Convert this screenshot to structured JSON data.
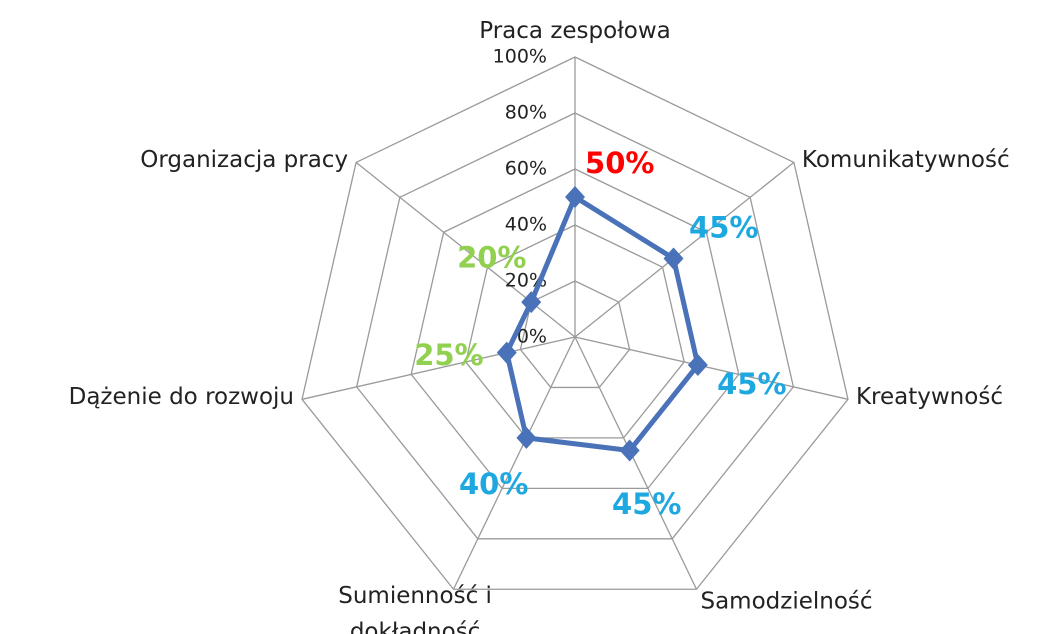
{
  "chart_data": {
    "type": "radar",
    "categories": [
      "Praca zespołowa",
      "Komunikatywność",
      "Kreatywność",
      "Samodzielność",
      "Sumienność i\ndokładność",
      "Dążenie do rozwoju",
      "Organizacja pracy"
    ],
    "series": [
      {
        "color": "#4a72b8",
        "values": [
          50,
          45,
          45,
          45,
          40,
          25,
          20
        ],
        "value_labels": [
          "50%",
          "45%",
          "45%",
          "45%",
          "40%",
          "25%",
          "20%"
        ],
        "label_colors": [
          "#ff0000",
          "#1ea8e0",
          "#1ea8e0",
          "#1ea8e0",
          "#1ea8e0",
          "#92d050",
          "#92d050"
        ]
      }
    ],
    "ylim": [
      0,
      100
    ],
    "yticks": [
      {
        "value": 0,
        "label": "0%"
      },
      {
        "value": 20,
        "label": "20%"
      },
      {
        "value": 40,
        "label": "40%"
      },
      {
        "value": 60,
        "label": "60%"
      },
      {
        "value": 80,
        "label": "80%"
      },
      {
        "value": 100,
        "label": "100%"
      }
    ],
    "grid": true
  }
}
